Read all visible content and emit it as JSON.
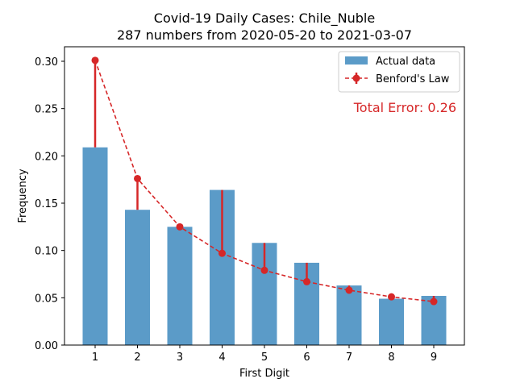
{
  "chart_data": {
    "type": "bar",
    "title_line1": "Covid-19 Daily Cases: Chile_Nuble",
    "title_line2": "287 numbers from 2020-05-20 to 2021-03-07",
    "xlabel": "First Digit",
    "ylabel": "Frequency",
    "categories": [
      "1",
      "2",
      "3",
      "4",
      "5",
      "6",
      "7",
      "8",
      "9"
    ],
    "series": [
      {
        "name": "Actual data",
        "values": [
          0.209,
          0.143,
          0.125,
          0.164,
          0.108,
          0.087,
          0.063,
          0.049,
          0.052
        ],
        "color": "#5b9bc8"
      },
      {
        "name": "Benford's Law",
        "values": [
          0.301,
          0.176,
          0.125,
          0.097,
          0.079,
          0.067,
          0.058,
          0.051,
          0.046
        ],
        "color": "#d62728"
      }
    ],
    "ylim": [
      0,
      0.3
    ],
    "yticks": [
      "0.00",
      "0.05",
      "0.10",
      "0.15",
      "0.20",
      "0.25",
      "0.30"
    ],
    "legend_position": "top-right",
    "annotation": "Total Error: 0.26",
    "annotation_color": "#d62728"
  }
}
